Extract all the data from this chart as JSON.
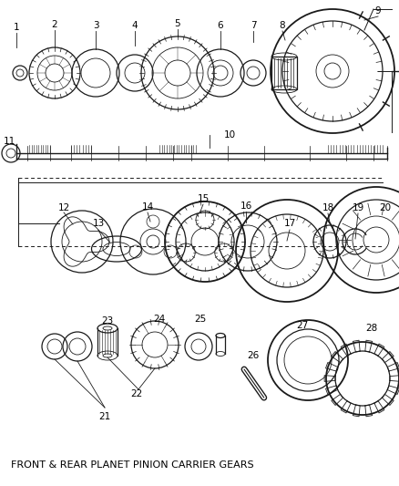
{
  "title": "FRONT & REAR PLANET PINION CARRIER GEARS",
  "background_color": "#ffffff",
  "line_color": "#1a1a1a",
  "fig_width": 4.38,
  "fig_height": 5.33,
  "dpi": 100
}
